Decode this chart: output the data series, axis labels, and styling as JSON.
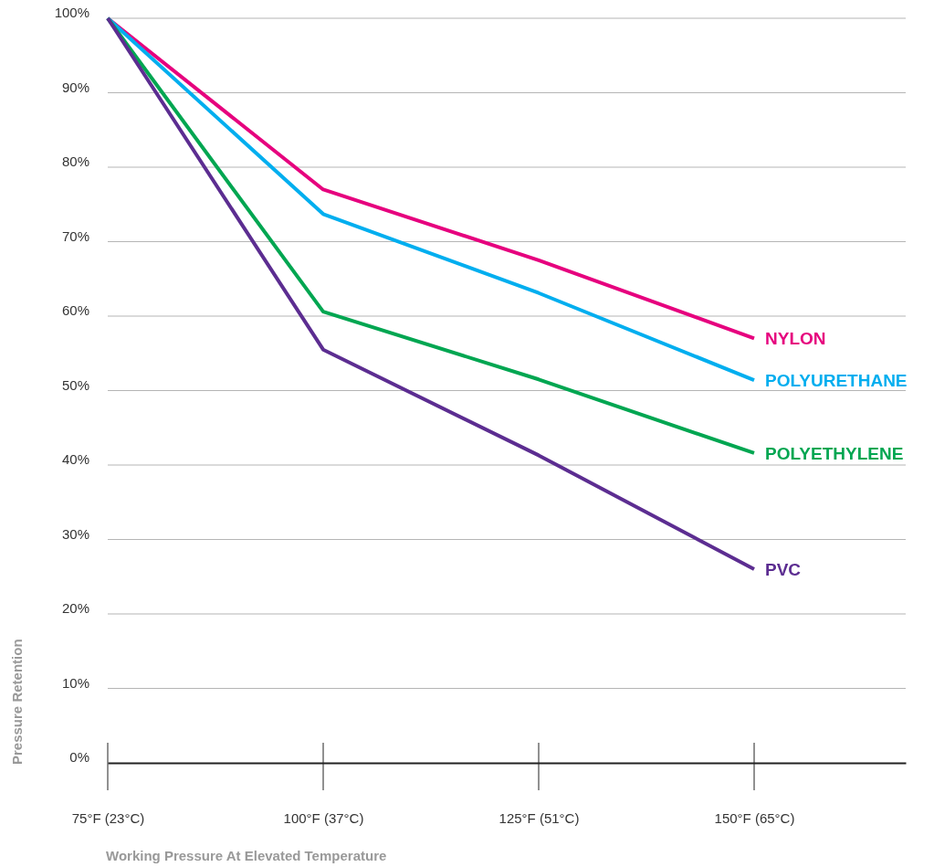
{
  "chart_data": {
    "type": "line",
    "xlabel": "Working Pressure At Elevated Temperature",
    "ylabel": "Pressure Retention",
    "categories": [
      "75°F (23°C)",
      "100°F (37°C)",
      "125°F (51°C)",
      "150°F (65°C)"
    ],
    "ylim": [
      0,
      100
    ],
    "yticks": [
      {
        "value": 0,
        "label": "0%"
      },
      {
        "value": 10,
        "label": "10%"
      },
      {
        "value": 20,
        "label": "20%"
      },
      {
        "value": 30,
        "label": "30%"
      },
      {
        "value": 40,
        "label": "40%"
      },
      {
        "value": 50,
        "label": "50%"
      },
      {
        "value": 60,
        "label": "60%"
      },
      {
        "value": 70,
        "label": "70%"
      },
      {
        "value": 80,
        "label": "80%"
      },
      {
        "value": 90,
        "label": "90%"
      },
      {
        "value": 100,
        "label": "100%"
      }
    ],
    "grid": "y",
    "legend": false,
    "marker": "none",
    "line_style": "solid",
    "series": [
      {
        "name": "NYLON",
        "color": "#e6007e",
        "values": [
          100,
          77,
          67.5,
          57
        ]
      },
      {
        "name": "POLYURETHANE",
        "color": "#00aeef",
        "values": [
          100,
          73.7,
          63.1,
          51.4
        ]
      },
      {
        "name": "POLYETHYLENE",
        "color": "#00a651",
        "values": [
          100,
          60.6,
          51.5,
          41.6
        ]
      },
      {
        "name": "PVC",
        "color": "#5c2d91",
        "values": [
          100,
          55.5,
          41.3,
          26
        ]
      }
    ]
  }
}
